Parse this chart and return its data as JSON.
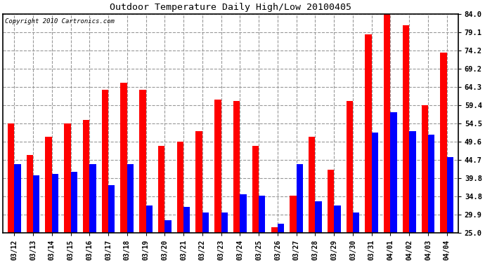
{
  "title": "Outdoor Temperature Daily High/Low 20100405",
  "copyright": "Copyright 2010 Cartronics.com",
  "dates": [
    "03/12",
    "03/13",
    "03/14",
    "03/15",
    "03/16",
    "03/17",
    "03/18",
    "03/19",
    "03/20",
    "03/21",
    "03/22",
    "03/23",
    "03/24",
    "03/25",
    "03/26",
    "03/27",
    "03/28",
    "03/29",
    "03/30",
    "03/31",
    "04/01",
    "04/02",
    "04/03",
    "04/04"
  ],
  "highs": [
    54.5,
    46.0,
    51.0,
    54.5,
    55.5,
    63.5,
    65.5,
    63.5,
    48.5,
    49.6,
    52.5,
    61.0,
    60.5,
    48.5,
    26.5,
    35.0,
    51.0,
    42.0,
    60.5,
    78.5,
    84.0,
    81.0,
    59.4,
    73.5
  ],
  "lows": [
    43.5,
    40.5,
    41.0,
    41.5,
    43.5,
    38.0,
    43.5,
    32.5,
    28.5,
    32.0,
    30.5,
    30.5,
    35.5,
    35.0,
    27.5,
    43.5,
    33.5,
    32.5,
    30.5,
    52.0,
    57.5,
    52.5,
    51.5,
    45.5
  ],
  "high_color": "#ff0000",
  "low_color": "#0000ff",
  "bg_color": "#ffffff",
  "grid_color": "#aaaaaa",
  "ymin": 25.0,
  "ymax": 84.0,
  "yticks": [
    25.0,
    29.9,
    34.8,
    39.8,
    44.7,
    49.6,
    54.5,
    59.4,
    64.3,
    69.2,
    74.2,
    79.1,
    84.0
  ],
  "figwidth": 6.9,
  "figheight": 3.75,
  "dpi": 100
}
